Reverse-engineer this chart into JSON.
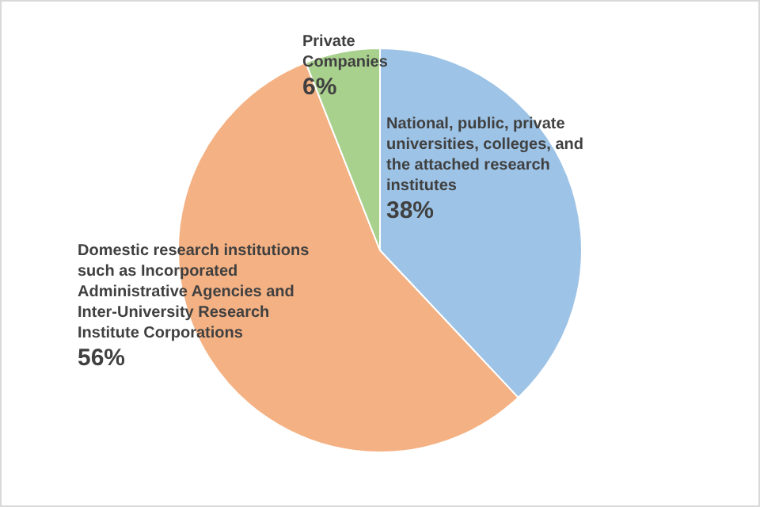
{
  "chart_data": {
    "type": "pie",
    "categories": [
      "National, public, private universities, colleges, and the attached research institutes",
      "Domestic research institutions such as Incorporated Administrative Agencies and Inter-University Research Institute Corporations",
      "Private Companies"
    ],
    "values": [
      38,
      56,
      6
    ],
    "colors": [
      "#9dc3e6",
      "#f4b183",
      "#a9d18e"
    ],
    "value_labels": [
      "38%",
      "56%",
      "6%"
    ]
  }
}
